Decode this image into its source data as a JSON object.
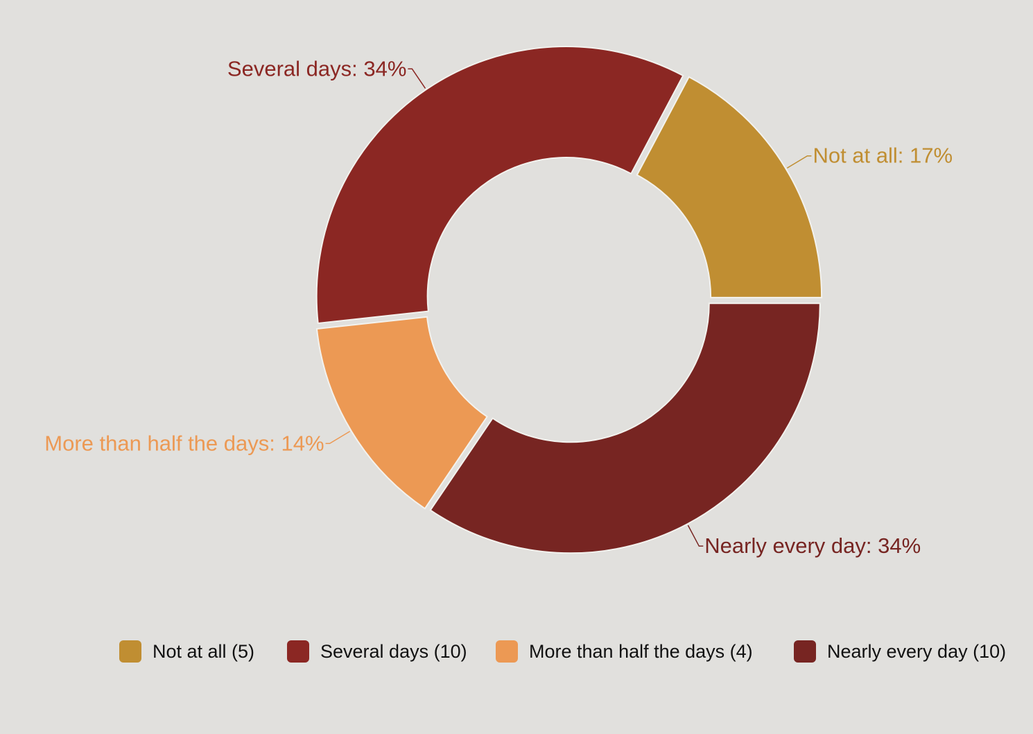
{
  "chart_data": {
    "type": "pie",
    "variant": "donut",
    "title": "",
    "categories": [
      "Not at all",
      "Several days",
      "More than half the days",
      "Nearly every day"
    ],
    "values": [
      5,
      10,
      4,
      10
    ],
    "colors": [
      "#c08e32",
      "#8b2723",
      "#ec9954",
      "#772522"
    ],
    "slice_labels": [
      "Not at all: 17%",
      "Several days: 34%",
      "More than half the days: 14%",
      "Nearly every day: 34%"
    ],
    "legend_placement": "bottom",
    "legend_labels": [
      "Not at all (5)",
      "Several days (10)",
      "More than half the days (4)",
      "Nearly every day (10)"
    ]
  }
}
